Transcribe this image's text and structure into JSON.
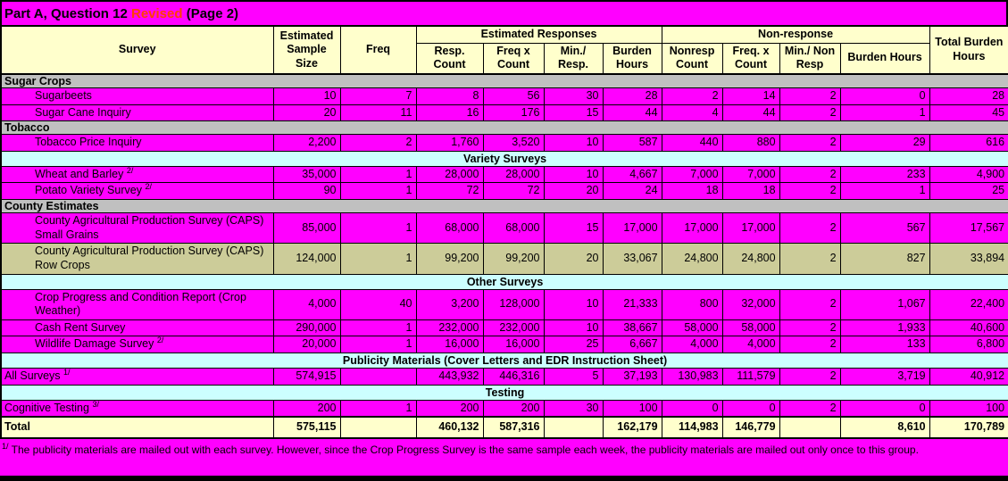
{
  "title": {
    "prefix": "Part A, Question 12 ",
    "revised_word": "Revised",
    "suffix": " (Page 2)"
  },
  "colors": {
    "page_bg": "#FF00FF",
    "header_bg": "#FFFFCC",
    "section_bg": "#C0C0C0",
    "banner_bg": "#CCFFFF",
    "data_row_bg": "#FF00FF",
    "green_row_bg": "#CCCC99",
    "total_row_bg": "#FFFFCC",
    "revised_color": "#FF4000"
  },
  "table": {
    "headers": {
      "survey": "Survey",
      "sample_size": "Estimated Sample Size",
      "freq": "Freq",
      "estimated_responses_group": "Estimated Responses",
      "nonresponse_group": "Non-response",
      "est_resp_count": "Resp. Count",
      "est_freq_x_count": "Freq x Count",
      "est_min_resp": "Min./ Resp.",
      "est_burden_hours": "Burden Hours",
      "non_resp_count": "Nonresp Count",
      "non_freq_x_count": "Freq. x Count",
      "non_min_resp": "Min./ Non Resp",
      "non_burden_hours": "Burden Hours",
      "total_burden_hours": "Total Burden Hours"
    },
    "rows": [
      {
        "type": "section",
        "label": "Sugar Crops"
      },
      {
        "type": "data",
        "indent": true,
        "label": "Sugarbeets",
        "values": [
          "10",
          "7",
          "8",
          "56",
          "30",
          "28",
          "2",
          "14",
          "2",
          "0",
          "28"
        ]
      },
      {
        "type": "data",
        "indent": true,
        "label": "Sugar Cane Inquiry",
        "values": [
          "20",
          "11",
          "16",
          "176",
          "15",
          "44",
          "4",
          "44",
          "2",
          "1",
          "45"
        ]
      },
      {
        "type": "section",
        "label": "Tobacco"
      },
      {
        "type": "data",
        "indent": true,
        "label": "Tobacco Price Inquiry",
        "values": [
          "2,200",
          "2",
          "1,760",
          "3,520",
          "10",
          "587",
          "440",
          "880",
          "2",
          "29",
          "616"
        ]
      },
      {
        "type": "banner",
        "label": "Variety Surveys"
      },
      {
        "type": "data",
        "indent": true,
        "label": "Wheat and Barley",
        "marker": "2/",
        "values": [
          "35,000",
          "1",
          "28,000",
          "28,000",
          "10",
          "4,667",
          "7,000",
          "7,000",
          "2",
          "233",
          "4,900"
        ]
      },
      {
        "type": "data",
        "indent": true,
        "label": "Potato Variety Survey",
        "marker": "2/",
        "values": [
          "90",
          "1",
          "72",
          "72",
          "20",
          "24",
          "18",
          "18",
          "2",
          "1",
          "25"
        ]
      },
      {
        "type": "section",
        "label": "County Estimates"
      },
      {
        "type": "data",
        "indent": true,
        "label": "County Agricultural Production Survey (CAPS) Small Grains",
        "values": [
          "85,000",
          "1",
          "68,000",
          "68,000",
          "15",
          "17,000",
          "17,000",
          "17,000",
          "2",
          "567",
          "17,567"
        ]
      },
      {
        "type": "data-green",
        "indent": true,
        "label": "County Agricultural Production Survey (CAPS) Row Crops",
        "values": [
          "124,000",
          "1",
          "99,200",
          "99,200",
          "20",
          "33,067",
          "24,800",
          "24,800",
          "2",
          "827",
          "33,894"
        ]
      },
      {
        "type": "banner",
        "label": "Other Surveys"
      },
      {
        "type": "data",
        "indent": true,
        "label": "Crop Progress and Condition Report (Crop Weather)",
        "values": [
          "4,000",
          "40",
          "3,200",
          "128,000",
          "10",
          "21,333",
          "800",
          "32,000",
          "2",
          "1,067",
          "22,400"
        ]
      },
      {
        "type": "data",
        "indent": true,
        "label": "Cash Rent Survey",
        "values": [
          "290,000",
          "1",
          "232,000",
          "232,000",
          "10",
          "38,667",
          "58,000",
          "58,000",
          "2",
          "1,933",
          "40,600"
        ]
      },
      {
        "type": "data",
        "indent": true,
        "label": "Wildlife Damage Survey",
        "marker": "2/",
        "values": [
          "20,000",
          "1",
          "16,000",
          "16,000",
          "25",
          "6,667",
          "4,000",
          "4,000",
          "2",
          "133",
          "6,800"
        ]
      },
      {
        "type": "banner",
        "label": "Publicity Materials (Cover Letters and EDR Instruction Sheet)"
      },
      {
        "type": "data",
        "indent": false,
        "label": "All Surveys",
        "marker": "1/",
        "values": [
          "574,915",
          "",
          "443,932",
          "446,316",
          "5",
          "37,193",
          "130,983",
          "111,579",
          "2",
          "3,719",
          "40,912"
        ]
      },
      {
        "type": "banner",
        "label": "Testing"
      },
      {
        "type": "data",
        "indent": false,
        "label": "Cognitive Testing",
        "marker": "3/",
        "values": [
          "200",
          "1",
          "200",
          "200",
          "30",
          "100",
          "0",
          "0",
          "2",
          "0",
          "100"
        ]
      },
      {
        "type": "total",
        "label": "Total",
        "values": [
          "575,115",
          "",
          "460,132",
          "587,316",
          "",
          "162,179",
          "114,983",
          "146,779",
          "",
          "8,610",
          "170,789"
        ]
      }
    ]
  },
  "footnote": {
    "marker": "1/",
    "text": "The publicity materials are mailed out with each survey.  However, since the Crop Progress Survey is the same sample each week, the publicity materials are mailed out only once to this group."
  }
}
